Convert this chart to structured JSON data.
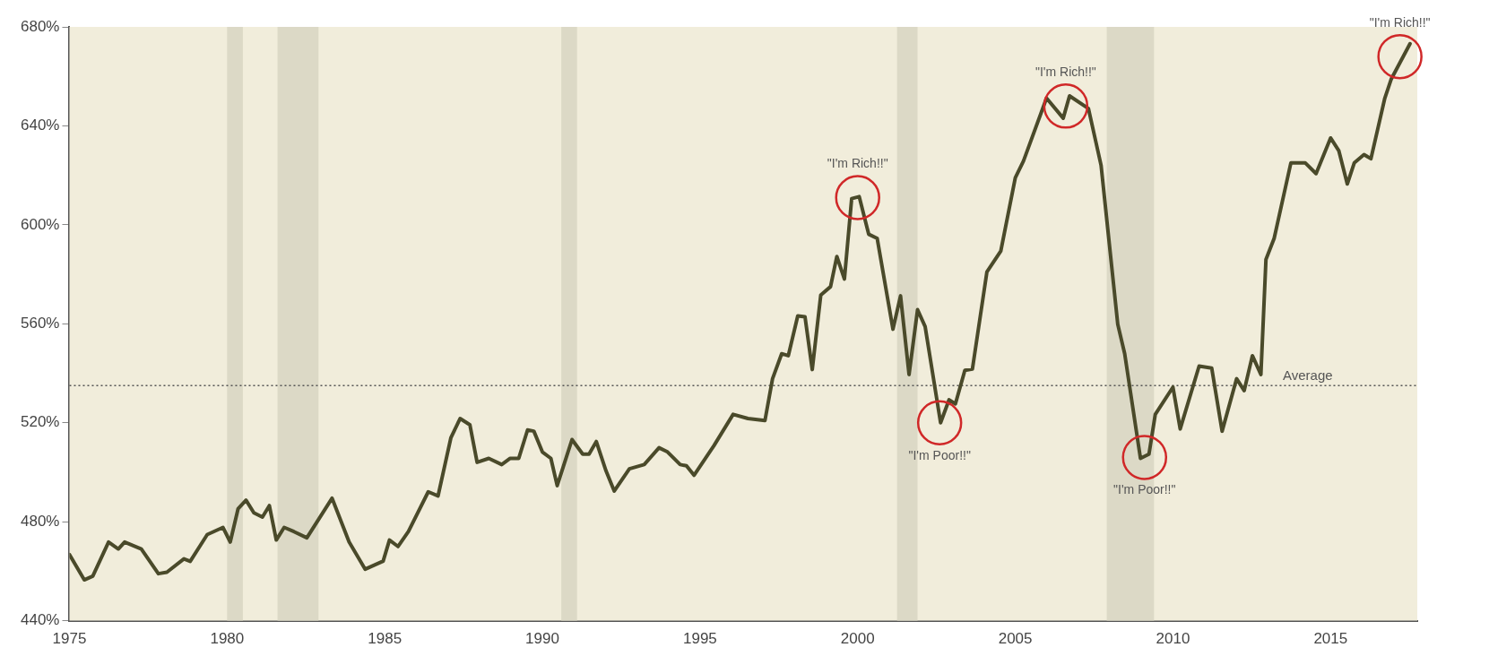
{
  "chart_data": {
    "type": "line",
    "x": [
      1975.0,
      1975.47,
      1975.74,
      1976.24,
      1976.55,
      1976.75,
      1977.28,
      1977.82,
      1978.09,
      1978.63,
      1978.83,
      1979.37,
      1979.87,
      1980.1,
      1980.35,
      1980.6,
      1980.85,
      1981.12,
      1981.34,
      1981.56,
      1981.81,
      1982.12,
      1982.53,
      1983.33,
      1983.87,
      1984.38,
      1984.95,
      1985.15,
      1985.42,
      1985.75,
      1986.38,
      1986.69,
      1987.1,
      1987.39,
      1987.7,
      1987.93,
      1988.3,
      1988.71,
      1988.98,
      1989.25,
      1989.53,
      1989.73,
      1990.0,
      1990.27,
      1990.47,
      1990.94,
      1991.28,
      1991.48,
      1991.71,
      1992.02,
      1992.28,
      1992.76,
      1993.23,
      1993.7,
      1993.97,
      1994.37,
      1994.57,
      1994.81,
      1995.44,
      1996.05,
      1996.52,
      1997.06,
      1997.3,
      1997.59,
      1997.8,
      1998.1,
      1998.33,
      1998.56,
      1998.83,
      1999.14,
      1999.34,
      1999.58,
      1999.81,
      2000.05,
      2000.35,
      2000.62,
      2001.12,
      2001.36,
      2001.63,
      2001.9,
      2002.14,
      2002.63,
      2002.9,
      2003.1,
      2003.4,
      2003.64,
      2004.1,
      2004.54,
      2005.0,
      2005.26,
      2005.99,
      2006.52,
      2006.72,
      2007.32,
      2007.72,
      2008.25,
      2008.47,
      2008.97,
      2009.24,
      2009.44,
      2010.0,
      2010.23,
      2010.83,
      2011.23,
      2011.56,
      2012.02,
      2012.26,
      2012.52,
      2012.79,
      2012.95,
      2013.21,
      2013.74,
      2014.2,
      2014.54,
      2015.0,
      2015.26,
      2015.53,
      2015.75,
      2016.06,
      2016.28,
      2016.72,
      2016.92,
      2017.52
    ],
    "series": [
      {
        "color": "#4a4a2a",
        "values": [
          466.7,
          456.5,
          458,
          471.8,
          469,
          471.8,
          469,
          459,
          459.6,
          465,
          464,
          474.8,
          477.7,
          471.8,
          485.3,
          488.7,
          483.6,
          481.9,
          486.5,
          472.6,
          477.7,
          476,
          473.5,
          489.5,
          471.8,
          460.8,
          464.1,
          472.6,
          470,
          476,
          492.1,
          490.4,
          514,
          521.7,
          519.2,
          504,
          505.6,
          503.1,
          505.6,
          505.6,
          517.1,
          516.6,
          508.2,
          505.6,
          494.6,
          513.2,
          507.3,
          507.3,
          512.4,
          500.5,
          492.4,
          501.4,
          503.1,
          509.9,
          508.2,
          503.1,
          502.6,
          498.8,
          510.7,
          523.4,
          521.7,
          520.9,
          537.8,
          547.9,
          547.1,
          563.2,
          562.8,
          541.5,
          571.6,
          575,
          587.2,
          578.1,
          610.6,
          611.4,
          596.2,
          594.5,
          557.8,
          571.3,
          539.5,
          565.7,
          558.9,
          520,
          529.3,
          527.6,
          541.2,
          541.7,
          581,
          589.4,
          619,
          625.8,
          651.2,
          643.1,
          652.1,
          647,
          624.1,
          559.8,
          547.9,
          505.6,
          507.3,
          523.4,
          534.4,
          517.5,
          542.9,
          542.1,
          516.6,
          537.8,
          533,
          547.1,
          539.5,
          586,
          594.5,
          625,
          625,
          620.7,
          635.1,
          630,
          616.5,
          625,
          628.4,
          626.7,
          651.2,
          658.8,
          673.2
        ]
      }
    ],
    "xlim": [
      1975,
      2017.75
    ],
    "xticks": [
      1975,
      1980,
      1985,
      1990,
      1995,
      2000,
      2005,
      2010,
      2015
    ],
    "ylim": [
      440,
      680
    ],
    "yticks": [
      {
        "value": 440,
        "label": "440%"
      },
      {
        "value": 480,
        "label": "480%"
      },
      {
        "value": 520,
        "label": "520%"
      },
      {
        "value": 560,
        "label": "560%"
      },
      {
        "value": 600,
        "label": "600%"
      },
      {
        "value": 640,
        "label": "640%"
      },
      {
        "value": 680,
        "label": "680%"
      }
    ],
    "grid": false,
    "legend": false,
    "marker": "none",
    "line_style": "solid",
    "ref_lines": [
      {
        "axis": "y",
        "value": 535,
        "label": "Average",
        "color": "#555555",
        "line_style": "dotted"
      }
    ],
    "bands": [
      {
        "axis": "x",
        "from": 1980.0,
        "to": 1980.5,
        "color": "#dcd9c6"
      },
      {
        "axis": "x",
        "from": 1981.6,
        "to": 1982.9,
        "color": "#dcd9c6"
      },
      {
        "axis": "x",
        "from": 1990.6,
        "to": 1991.1,
        "color": "#dcd9c6"
      },
      {
        "axis": "x",
        "from": 2001.25,
        "to": 2001.9,
        "color": "#dcd9c6"
      },
      {
        "axis": "x",
        "from": 2007.9,
        "to": 2009.4,
        "color": "#dcd9c6"
      }
    ],
    "annotations": [
      {
        "text": "\"I'm Rich!!\"",
        "x": 2000.0,
        "y": 611
      },
      {
        "text": "\"I'm Poor!!\"",
        "x": 2002.6,
        "y": 520
      },
      {
        "text": "\"I'm Rich!!\"",
        "x": 2006.6,
        "y": 648
      },
      {
        "text": "\"I'm Poor!!\"",
        "x": 2009.1,
        "y": 506
      },
      {
        "text": "\"I'm Rich!!\"",
        "x": 2017.2,
        "y": 668
      }
    ]
  }
}
